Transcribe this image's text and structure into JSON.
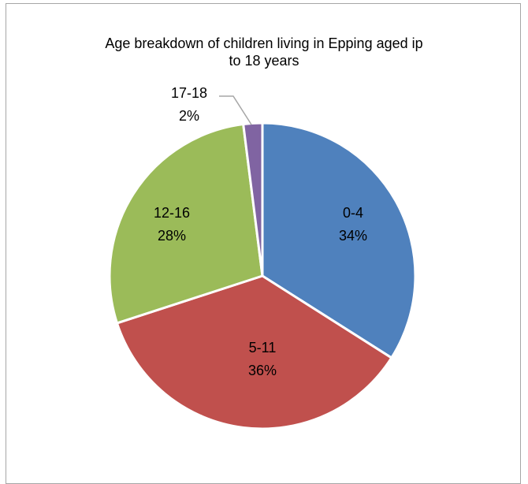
{
  "chart_data": {
    "type": "pie",
    "title_lines": [
      "Age breakdown  of children living in Epping aged ip",
      "to 18 years"
    ],
    "slices": [
      {
        "category": "0-4",
        "value": 34,
        "percent_label": "34%",
        "color": "#4F81BD"
      },
      {
        "category": "5-11",
        "value": 36,
        "percent_label": "36%",
        "color": "#C0504D"
      },
      {
        "category": "12-16",
        "value": 28,
        "percent_label": "28%",
        "color": "#9BBB59"
      },
      {
        "category": "17-18",
        "value": 2,
        "percent_label": "2%",
        "color": "#8064A2"
      }
    ],
    "legend": "none"
  }
}
